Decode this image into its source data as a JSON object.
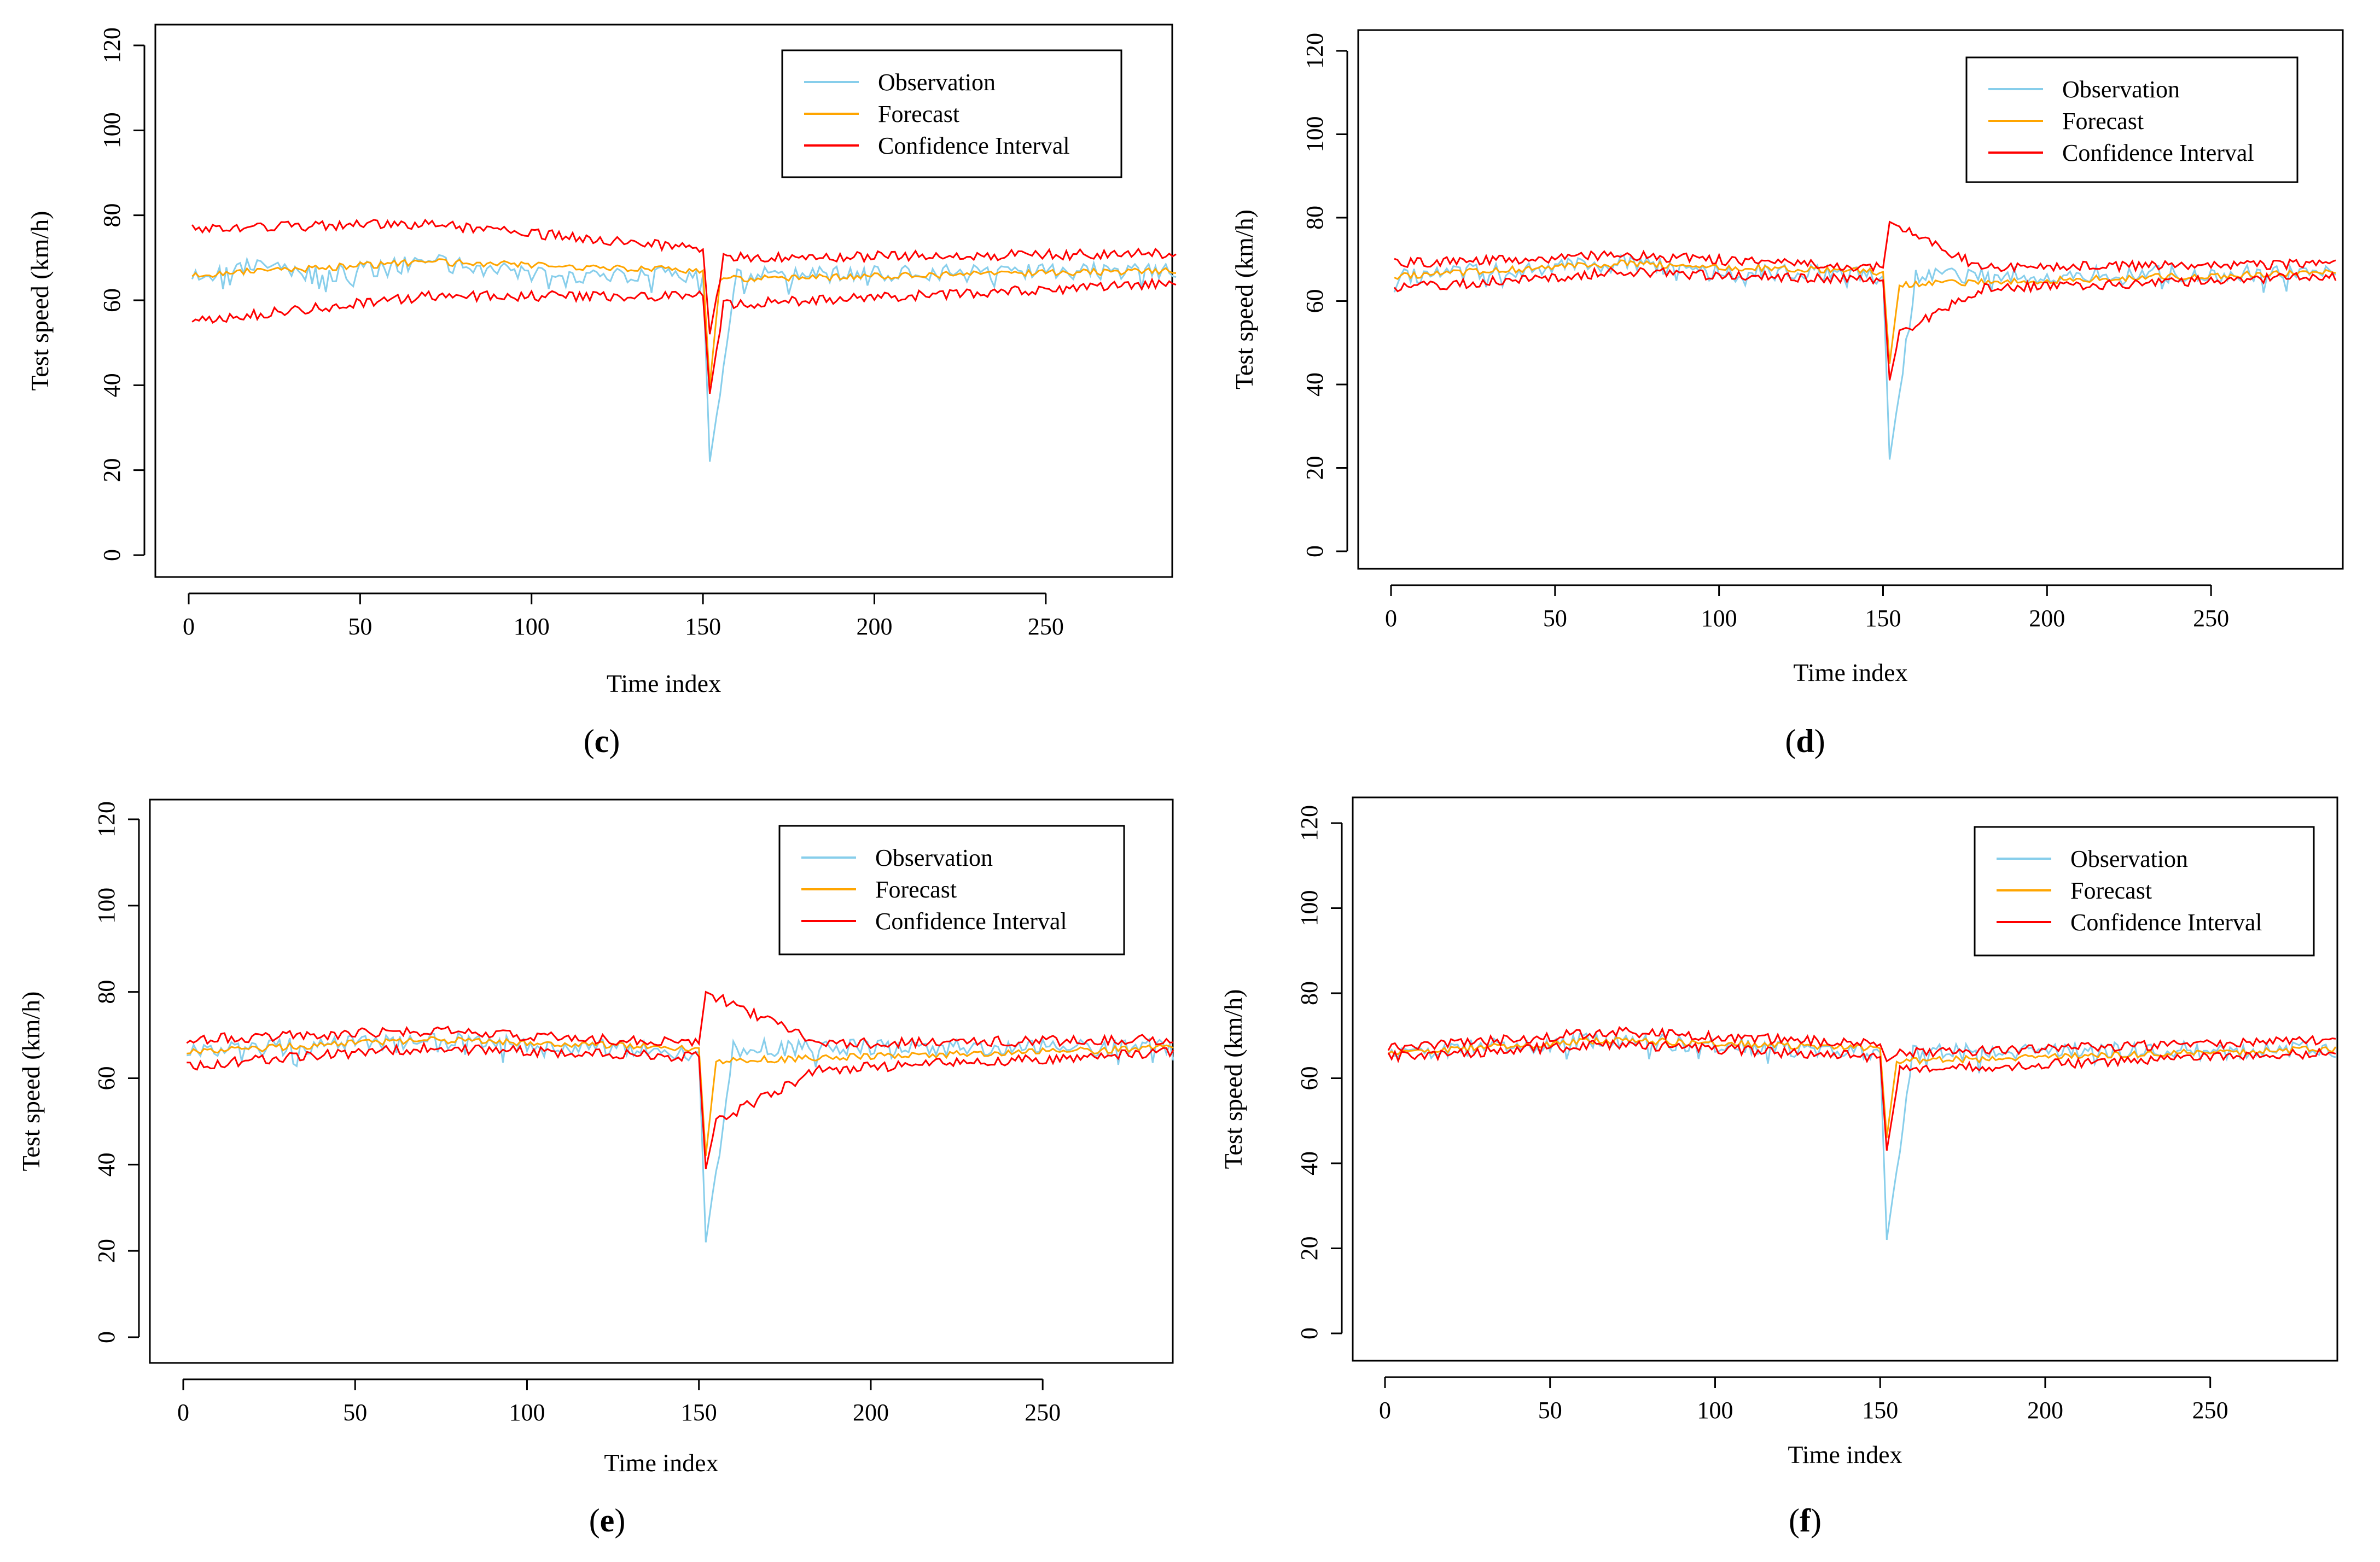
{
  "figure": {
    "panels": [
      {
        "id": "c",
        "label_prefix": "(",
        "label_letter": "c",
        "label_suffix": ")"
      },
      {
        "id": "d",
        "label_prefix": "(",
        "label_letter": "d",
        "label_suffix": ")"
      },
      {
        "id": "e",
        "label_prefix": "(",
        "label_letter": "e",
        "label_suffix": ")"
      },
      {
        "id": "f",
        "label_prefix": "(",
        "label_letter": "f",
        "label_suffix": ")"
      }
    ]
  },
  "colors": {
    "observation": "#87CEEB",
    "forecast": "#FFA500",
    "confidence_interval": "#FF0000"
  },
  "chart_data": [
    {
      "panel": "c",
      "type": "line",
      "xlabel": "Time index",
      "ylabel": "Test speed (km/h)",
      "xlim": [
        0,
        288
      ],
      "ylim": [
        0,
        120
      ],
      "xticks": [
        0,
        50,
        100,
        150,
        200,
        250
      ],
      "yticks": [
        0,
        20,
        40,
        60,
        80,
        100,
        120
      ],
      "legend": {
        "position": "top-right",
        "entries": [
          "Observation",
          "Forecast",
          "Confidence Interval"
        ]
      },
      "x": [
        1,
        152,
        288
      ],
      "series": [
        {
          "name": "Observation",
          "values_at": [
            [
              1,
              66
            ],
            [
              20,
              68
            ],
            [
              40,
              66
            ],
            [
              70,
              69
            ],
            [
              100,
              66
            ],
            [
              150,
              66
            ],
            [
              152,
              22
            ],
            [
              160,
              66
            ],
            [
              288,
              67
            ]
          ]
        },
        {
          "name": "Forecast",
          "values_at": [
            [
              1,
              66
            ],
            [
              70,
              69
            ],
            [
              150,
              67
            ],
            [
              152,
              40
            ],
            [
              155,
              65
            ],
            [
              288,
              67
            ]
          ]
        },
        {
          "name": "Confidence Interval",
          "upper_at": [
            [
              1,
              77
            ],
            [
              70,
              78
            ],
            [
              150,
              72
            ],
            [
              152,
              52
            ],
            [
              156,
              70
            ],
            [
              288,
              71
            ]
          ],
          "lower_at": [
            [
              1,
              55
            ],
            [
              70,
              61
            ],
            [
              150,
              61
            ],
            [
              152,
              38
            ],
            [
              156,
              59
            ],
            [
              288,
              64
            ]
          ]
        }
      ]
    },
    {
      "panel": "d",
      "type": "line",
      "xlabel": "Time index",
      "ylabel": "Test speed (km/h)",
      "xlim": [
        0,
        288
      ],
      "ylim": [
        0,
        120
      ],
      "xticks": [
        0,
        50,
        100,
        150,
        200,
        250
      ],
      "yticks": [
        0,
        20,
        40,
        60,
        80,
        100,
        120
      ],
      "legend": {
        "position": "top-right",
        "entries": [
          "Observation",
          "Forecast",
          "Confidence Interval"
        ]
      },
      "series": [
        {
          "name": "Observation",
          "values_at": [
            [
              1,
              66
            ],
            [
              70,
              69
            ],
            [
              150,
              66
            ],
            [
              152,
              22
            ],
            [
              160,
              66
            ],
            [
              288,
              67
            ]
          ]
        },
        {
          "name": "Forecast",
          "values_at": [
            [
              1,
              66
            ],
            [
              70,
              69
            ],
            [
              150,
              67
            ],
            [
              152,
              45
            ],
            [
              155,
              64
            ],
            [
              288,
              67
            ]
          ]
        },
        {
          "name": "Confidence Interval",
          "upper_at": [
            [
              1,
              69
            ],
            [
              70,
              71
            ],
            [
              150,
              68
            ],
            [
              152,
              79
            ],
            [
              180,
              68
            ],
            [
              288,
              69
            ]
          ],
          "lower_at": [
            [
              1,
              63
            ],
            [
              70,
              67
            ],
            [
              150,
              65
            ],
            [
              152,
              41
            ],
            [
              155,
              52
            ],
            [
              180,
              63
            ],
            [
              288,
              66
            ]
          ]
        }
      ]
    },
    {
      "panel": "e",
      "type": "line",
      "xlabel": "Time index",
      "ylabel": "Test speed (km/h)",
      "xlim": [
        0,
        288
      ],
      "ylim": [
        0,
        120
      ],
      "xticks": [
        0,
        50,
        100,
        150,
        200,
        250
      ],
      "yticks": [
        0,
        20,
        40,
        60,
        80,
        100,
        120
      ],
      "legend": {
        "position": "top-right",
        "entries": [
          "Observation",
          "Forecast",
          "Confidence Interval"
        ]
      },
      "series": [
        {
          "name": "Observation",
          "values_at": [
            [
              1,
              66
            ],
            [
              70,
              69
            ],
            [
              150,
              66
            ],
            [
              152,
              22
            ],
            [
              160,
              67
            ],
            [
              288,
              67
            ]
          ]
        },
        {
          "name": "Forecast",
          "values_at": [
            [
              1,
              66
            ],
            [
              70,
              69
            ],
            [
              150,
              67
            ],
            [
              152,
              42
            ],
            [
              155,
              64
            ],
            [
              288,
              67
            ]
          ]
        },
        {
          "name": "Confidence Interval",
          "upper_at": [
            [
              1,
              69
            ],
            [
              70,
              71
            ],
            [
              150,
              68
            ],
            [
              152,
              80
            ],
            [
              185,
              68
            ],
            [
              288,
              69
            ]
          ],
          "lower_at": [
            [
              1,
              63
            ],
            [
              70,
              67
            ],
            [
              150,
              65
            ],
            [
              152,
              39
            ],
            [
              155,
              50
            ],
            [
              185,
              62
            ],
            [
              288,
              66
            ]
          ]
        }
      ]
    },
    {
      "panel": "f",
      "type": "line",
      "xlabel": "Time index",
      "ylabel": "Test speed (km/h)",
      "xlim": [
        0,
        288
      ],
      "ylim": [
        0,
        120
      ],
      "xticks": [
        0,
        50,
        100,
        150,
        200,
        250
      ],
      "yticks": [
        0,
        20,
        40,
        60,
        80,
        100,
        120
      ],
      "legend": {
        "position": "top-right",
        "entries": [
          "Observation",
          "Forecast",
          "Confidence Interval"
        ]
      },
      "series": [
        {
          "name": "Observation",
          "values_at": [
            [
              1,
              66
            ],
            [
              70,
              69
            ],
            [
              150,
              66
            ],
            [
              152,
              22
            ],
            [
              160,
              66
            ],
            [
              288,
              67
            ]
          ]
        },
        {
          "name": "Forecast",
          "values_at": [
            [
              1,
              66
            ],
            [
              70,
              69
            ],
            [
              150,
              67
            ],
            [
              152,
              46
            ],
            [
              155,
              64
            ],
            [
              288,
              67
            ]
          ]
        },
        {
          "name": "Confidence Interval",
          "upper_at": [
            [
              1,
              67
            ],
            [
              70,
              71
            ],
            [
              150,
              68
            ],
            [
              152,
              64
            ],
            [
              156,
              66
            ],
            [
              288,
              69
            ]
          ],
          "lower_at": [
            [
              1,
              65
            ],
            [
              70,
              68
            ],
            [
              150,
              65
            ],
            [
              152,
              43
            ],
            [
              156,
              62
            ],
            [
              288,
              66
            ]
          ]
        }
      ]
    }
  ]
}
